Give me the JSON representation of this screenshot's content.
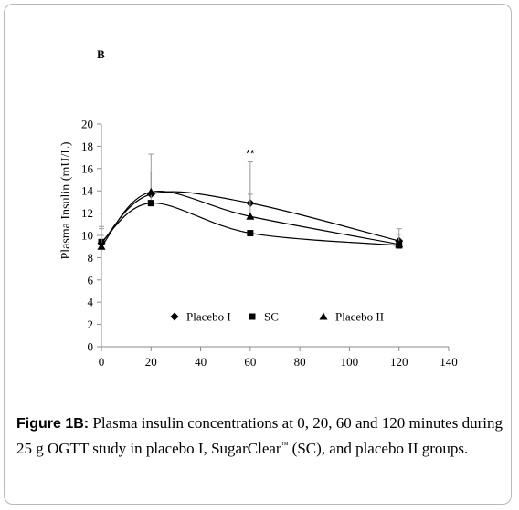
{
  "panel_label": "B",
  "chart_data": {
    "type": "line",
    "x": [
      0,
      20,
      60,
      120
    ],
    "xlim": [
      0,
      140
    ],
    "xticks": [
      0,
      20,
      40,
      60,
      80,
      100,
      120,
      140
    ],
    "ylim": [
      0,
      20
    ],
    "yticks": [
      0,
      2,
      4,
      6,
      8,
      10,
      12,
      14,
      16,
      18,
      20
    ],
    "ylabel": "Plasma Insulin (mU/L)",
    "xlabel": "",
    "grid": false,
    "legend_position": "bottom-center inside plot",
    "smooth": true,
    "series": [
      {
        "name": "Placebo I",
        "marker": "diamond",
        "values": [
          9.3,
          13.7,
          12.9,
          9.5
        ],
        "error": [
          1.5,
          3.6,
          3.7,
          1.1
        ]
      },
      {
        "name": "SC",
        "marker": "square",
        "values": [
          9.4,
          12.9,
          10.2,
          9.1
        ],
        "error": [
          1.2,
          2.8,
          0.0,
          0.0
        ]
      },
      {
        "name": "Placebo II",
        "marker": "triangle",
        "values": [
          9.0,
          13.9,
          11.7,
          9.2
        ],
        "error": [
          1.0,
          1.8,
          2.0,
          0.9
        ]
      }
    ],
    "annotations": [
      {
        "x": 60,
        "y": 17.4,
        "text": "**"
      }
    ]
  },
  "caption": {
    "label": "Figure 1B:",
    "text_part1": " Plasma insulin concentrations at 0, 20, 60 and 120 minutes during 25 g OGTT study in placebo I, SugarClear",
    "trademark": "™",
    "text_part2": " (SC), and placebo II groups."
  }
}
